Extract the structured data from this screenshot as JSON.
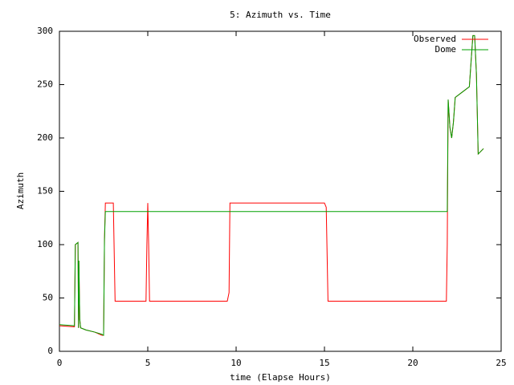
{
  "chart_data": {
    "type": "line",
    "title": "5: Azimuth vs. Time",
    "xlabel": "time (Elapse Hours)",
    "ylabel": "Azimuth",
    "xlim": [
      0,
      25
    ],
    "xticks": [
      0,
      5,
      10,
      15,
      20,
      25
    ],
    "ylim": [
      0,
      300
    ],
    "yticks": [
      0,
      50,
      100,
      150,
      200,
      250,
      300
    ],
    "grid": false,
    "legend": "top-right",
    "series": [
      {
        "name": "Observed",
        "color": "#ff0000",
        "x": [
          0,
          0.85,
          0.9,
          1.05,
          1.08,
          1.1,
          1.15,
          1.2,
          1.5,
          2.0,
          2.4,
          2.5,
          2.55,
          2.6,
          3.05,
          3.15,
          4.9,
          4.95,
          5.0,
          5.05,
          5.1,
          9.5,
          9.6,
          9.65,
          13.5,
          15.0,
          15.1,
          15.2,
          21.9,
          21.95,
          22.0,
          22.1,
          22.2,
          22.3,
          22.4,
          22.8,
          23.2,
          23.4,
          23.5,
          23.6,
          23.7,
          24.0
        ],
        "values": [
          24,
          23,
          100,
          102,
          22,
          85,
          30,
          22,
          20,
          18,
          15,
          15,
          105,
          139,
          139,
          47,
          47,
          100,
          139,
          100,
          47,
          47,
          55,
          139,
          139,
          139,
          135,
          47,
          47,
          100,
          236,
          210,
          200,
          215,
          238,
          243,
          248,
          296,
          296,
          260,
          185,
          190
        ]
      },
      {
        "name": "Dome",
        "color": "#00a000",
        "x": [
          0,
          0.85,
          0.9,
          1.05,
          1.08,
          1.1,
          1.15,
          1.2,
          1.5,
          2.0,
          2.4,
          2.5,
          2.55,
          2.6,
          21.95,
          22.0,
          22.1,
          22.2,
          22.3,
          22.4,
          22.8,
          23.2,
          23.4,
          23.5,
          23.6,
          23.7,
          24.0
        ],
        "values": [
          25,
          24,
          100,
          102,
          22,
          85,
          30,
          22,
          20,
          18,
          16,
          15,
          105,
          131,
          131,
          236,
          210,
          200,
          215,
          238,
          243,
          248,
          296,
          296,
          260,
          185,
          190
        ]
      }
    ]
  }
}
